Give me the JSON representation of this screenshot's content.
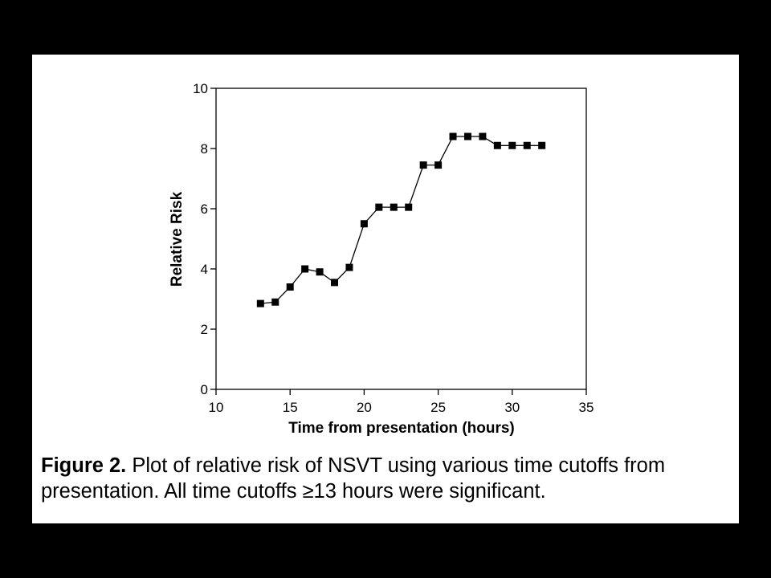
{
  "colors": {
    "background": "#000000",
    "panel": "#ffffff",
    "ink": "#000000"
  },
  "chart_data": {
    "type": "line",
    "xlabel": "Time from presentation (hours)",
    "ylabel": "Relative Risk",
    "xlim": [
      10,
      35
    ],
    "ylim": [
      0,
      10
    ],
    "x_ticks": [
      10,
      15,
      20,
      25,
      30,
      35
    ],
    "y_ticks": [
      0,
      2,
      4,
      6,
      8,
      10
    ],
    "marker": "square",
    "grid": false,
    "series": [
      {
        "x": [
          13,
          14,
          15,
          16,
          17,
          18,
          19,
          20,
          21,
          22,
          23,
          24,
          25,
          26,
          27,
          28,
          29,
          30,
          31,
          32
        ],
        "y": [
          2.85,
          2.9,
          3.4,
          4.0,
          3.9,
          3.55,
          4.05,
          5.5,
          6.05,
          6.05,
          6.05,
          7.45,
          7.45,
          8.4,
          8.4,
          8.4,
          8.1,
          8.1,
          8.1,
          8.1
        ]
      }
    ]
  },
  "caption": {
    "label": "Figure  2.",
    "text": " Plot of relative risk of NSVT using various time cutoffs from presentation. All time cutoffs ≥13 hours were significant."
  }
}
